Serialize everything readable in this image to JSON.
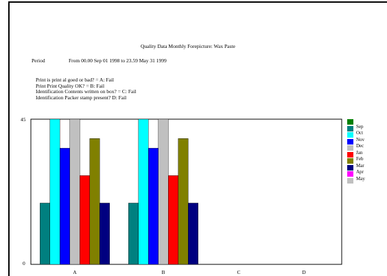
{
  "report": {
    "title": "Quality Data Monthly Forepicture: Wax Paste",
    "period_label": "Period",
    "period_value": "From 00.00 Sep 01 1998 to 23.59 May 31 1999",
    "questions": [
      "Print is print al goed or bad? = A: Fail",
      "Print Print Quality OK? = B: Fail",
      "Identification Contents written on box? = C: Fail",
      "Identification Packer stamp present?    D: Fail"
    ]
  },
  "chart_data": {
    "type": "bar",
    "categories": [
      "A",
      "B",
      "C",
      "D"
    ],
    "ylim": [
      0,
      45
    ],
    "y_tick_labels": [
      "45",
      "0"
    ],
    "series": [
      {
        "name": "Sep",
        "color": "#008080",
        "values": [
          19,
          19,
          0,
          0
        ]
      },
      {
        "name": "Oct",
        "color": "#00ffff",
        "values": [
          45,
          45,
          0,
          0
        ]
      },
      {
        "name": "Nov",
        "color": "#0000ff",
        "values": [
          36,
          36,
          0,
          0
        ]
      },
      {
        "name": "Dec",
        "color": "#c0c0c0",
        "values": [
          45,
          45,
          0,
          0
        ]
      },
      {
        "name": "Jan",
        "color": "#ff0000",
        "values": [
          27.5,
          27.5,
          0,
          0
        ]
      },
      {
        "name": "Feb",
        "color": "#808000",
        "values": [
          39,
          39,
          0,
          0
        ]
      },
      {
        "name": "Mar",
        "color": "#000080",
        "values": [
          19,
          19,
          0,
          0
        ]
      },
      {
        "name": "Apr",
        "color": "#ff00ff",
        "values": [
          0,
          0,
          0,
          0
        ]
      },
      {
        "name": "May",
        "color": "#c0c0c0",
        "values": [
          0,
          0,
          0,
          0
        ]
      }
    ],
    "legend_extra": {
      "name": "",
      "color": "#008000"
    },
    "legend_position": "right",
    "grid": false
  }
}
